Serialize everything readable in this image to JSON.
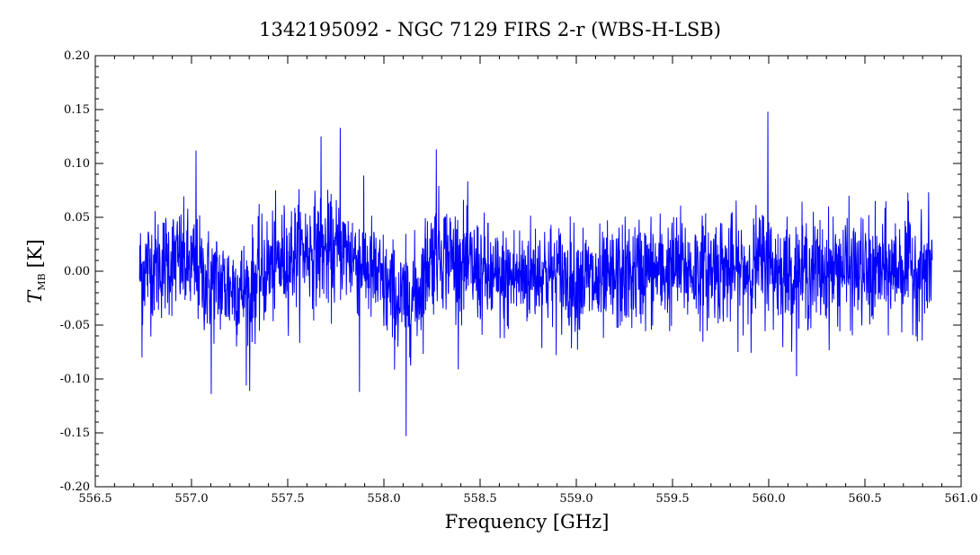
{
  "chart_data": {
    "type": "line",
    "title": "1342195092 - NGC 7129 FIRS 2-r (WBS-H-LSB)",
    "xlabel": "Frequency [GHz]",
    "ylabel_main": "T",
    "ylabel_sub": "MB",
    "ylabel_unit": "[K]",
    "xlim": [
      556.5,
      561.0
    ],
    "ylim": [
      -0.2,
      0.2
    ],
    "xticks": [
      "556.5",
      "557.0",
      "557.5",
      "558.0",
      "558.5",
      "559.0",
      "559.5",
      "560.0",
      "560.5",
      "561.0"
    ],
    "yticks": [
      "0.20",
      "0.15",
      "0.10",
      "0.05",
      "0.00",
      "-0.05",
      "-0.10",
      "-0.15",
      "-0.20"
    ],
    "grid": false,
    "colors": {
      "series": "#0000ff",
      "axes": "#000000"
    },
    "series": [
      {
        "name": "",
        "x": [
          556.73,
          556.78,
          556.83,
          556.88,
          556.93,
          556.98,
          557.03,
          557.08,
          557.13,
          557.18,
          557.23,
          557.28,
          557.33,
          557.38,
          557.43,
          557.48,
          557.53,
          557.58,
          557.63,
          557.68,
          557.73,
          557.78,
          557.83,
          557.88,
          557.93,
          557.98,
          558.03,
          558.08,
          558.13,
          558.18,
          558.23,
          558.28,
          558.33,
          558.38,
          558.43,
          558.48,
          558.53,
          558.58,
          558.63,
          558.68,
          558.73,
          558.78,
          558.83,
          558.88,
          558.93,
          558.98,
          559.03,
          559.08,
          559.13,
          559.18,
          559.23,
          559.28,
          559.33,
          559.38,
          559.43,
          559.48,
          559.53,
          559.58,
          559.63,
          559.68,
          559.73,
          559.78,
          559.83,
          559.88,
          559.93,
          559.98,
          560.03,
          560.08,
          560.13,
          560.18,
          560.23,
          560.28,
          560.33,
          560.38,
          560.43,
          560.48,
          560.53,
          560.58,
          560.63,
          560.68,
          560.73,
          560.78,
          560.83,
          560.85
        ],
        "y": [
          0.0,
          0.005,
          0.005,
          0.01,
          0.01,
          0.005,
          0.0,
          -0.01,
          -0.01,
          -0.015,
          -0.015,
          -0.02,
          -0.01,
          0.0,
          0.005,
          0.01,
          0.015,
          0.02,
          0.02,
          0.02,
          0.015,
          0.02,
          0.015,
          0.01,
          0.0,
          -0.01,
          -0.02,
          -0.03,
          -0.025,
          -0.02,
          0.01,
          0.02,
          0.015,
          0.01,
          0.005,
          0.0,
          -0.005,
          -0.01,
          -0.01,
          -0.005,
          -0.005,
          0.0,
          0.0,
          -0.005,
          -0.005,
          -0.01,
          -0.005,
          -0.01,
          -0.015,
          -0.01,
          -0.005,
          -0.005,
          0.0,
          0.0,
          0.0,
          0.0,
          0.005,
          0.0,
          0.0,
          0.0,
          0.005,
          0.0,
          0.0,
          0.0,
          0.005,
          0.01,
          0.0,
          0.0,
          -0.005,
          0.0,
          0.0,
          0.0,
          0.0,
          0.005,
          0.0,
          0.0,
          -0.005,
          0.0,
          0.0,
          0.005,
          0.005,
          0.0,
          0.0,
          0.01
        ],
        "noise_std": 0.025,
        "spikes": [
          {
            "x": 558.115,
            "y": -0.153
          },
          {
            "x": 559.995,
            "y": 0.148
          },
          {
            "x": 557.773,
            "y": 0.133
          },
          {
            "x": 557.673,
            "y": 0.125
          },
          {
            "x": 557.103,
            "y": -0.114
          },
          {
            "x": 557.303,
            "y": -0.111
          },
          {
            "x": 557.023,
            "y": 0.112
          },
          {
            "x": 558.273,
            "y": 0.113
          },
          {
            "x": 557.873,
            "y": -0.112
          },
          {
            "x": 556.743,
            "y": -0.08
          }
        ]
      }
    ]
  }
}
